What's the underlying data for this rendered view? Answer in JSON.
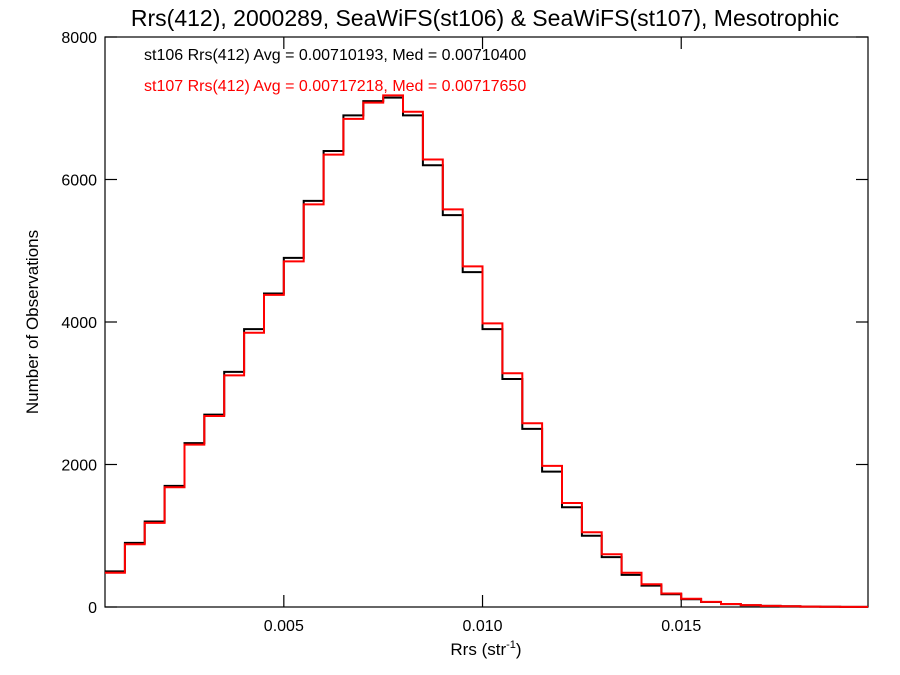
{
  "chart_data": {
    "type": "line",
    "title": "Rrs(412), 2000289, SeaWiFS(st106) & SeaWiFS(st107), Mesotrophic",
    "xlabel": "Rrs (str",
    "xlabel_sup": "-1",
    "xlabel_close": ")",
    "ylabel": "Number of Observations",
    "xlim": [
      0.0005,
      0.0197
    ],
    "ylim": [
      0,
      8000
    ],
    "x_ticks": [
      0.005,
      0.01,
      0.015
    ],
    "x_tick_labels": [
      "0.005",
      "0.010",
      "0.015"
    ],
    "y_ticks": [
      0,
      2000,
      4000,
      6000,
      8000
    ],
    "y_tick_labels": [
      "0",
      "2000",
      "4000",
      "6000",
      "8000"
    ],
    "grid": false,
    "legend_placement": "top-left",
    "x": [
      0.0005,
      0.001,
      0.0015,
      0.002,
      0.0025,
      0.003,
      0.0035,
      0.004,
      0.0045,
      0.005,
      0.0055,
      0.006,
      0.0065,
      0.007,
      0.0075,
      0.008,
      0.0085,
      0.009,
      0.0095,
      0.01,
      0.0105,
      0.011,
      0.0115,
      0.012,
      0.0125,
      0.013,
      0.0135,
      0.014,
      0.0145,
      0.015,
      0.0155,
      0.016,
      0.0165,
      0.017,
      0.0175,
      0.018,
      0.0185,
      0.019,
      0.0197
    ],
    "series": [
      {
        "name": "st106",
        "color": "#000000",
        "values": [
          500,
          900,
          1200,
          1700,
          2300,
          2700,
          3300,
          3900,
          4400,
          4900,
          5700,
          6400,
          6900,
          7100,
          7150,
          6900,
          6200,
          5500,
          4700,
          3900,
          3200,
          2500,
          1900,
          1400,
          1000,
          700,
          450,
          300,
          180,
          110,
          70,
          40,
          25,
          15,
          10,
          6,
          4,
          2,
          1
        ]
      },
      {
        "name": "st107",
        "color": "#ff0000",
        "values": [
          480,
          880,
          1180,
          1680,
          2280,
          2680,
          3250,
          3850,
          4380,
          4850,
          5650,
          6350,
          6850,
          7080,
          7180,
          6950,
          6280,
          5580,
          4780,
          3980,
          3280,
          2580,
          1980,
          1460,
          1050,
          740,
          480,
          320,
          190,
          115,
          72,
          42,
          26,
          16,
          10,
          6,
          4,
          2,
          1
        ]
      }
    ],
    "legend": [
      {
        "text": "st106 Rrs(412) Avg = 0.00710193, Med = 0.00710400",
        "color": "#000000"
      },
      {
        "text": "st107 Rrs(412) Avg = 0.00717218, Med = 0.00717650",
        "color": "#ff0000"
      }
    ]
  }
}
